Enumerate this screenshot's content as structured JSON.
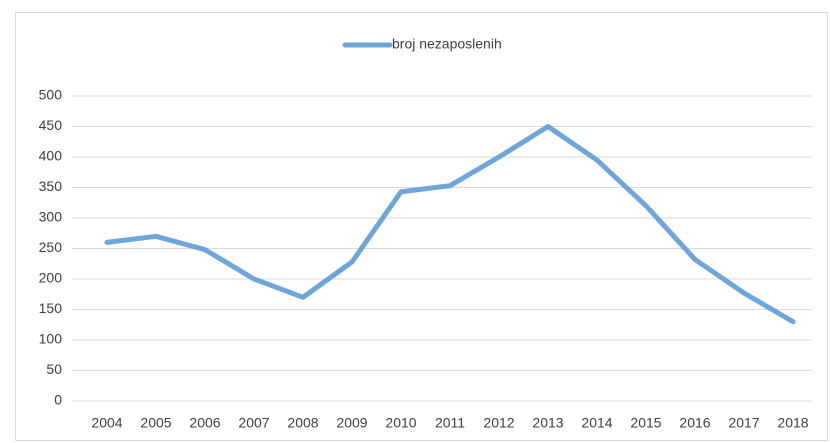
{
  "chart_data": {
    "type": "line",
    "categories": [
      "2004",
      "2005",
      "2006",
      "2007",
      "2008",
      "2009",
      "2010",
      "2011",
      "2012",
      "2013",
      "2014",
      "2015",
      "2016",
      "2017",
      "2018"
    ],
    "series": [
      {
        "name": "broj nezaposlenih",
        "color": "#6fa6d9",
        "values": [
          260,
          270,
          248,
          200,
          170,
          228,
          343,
          353,
          400,
          450,
          395,
          320,
          232,
          177,
          130
        ]
      }
    ],
    "ylim": [
      0,
      500
    ],
    "yticks": [
      0,
      50,
      100,
      150,
      200,
      250,
      300,
      350,
      400,
      450,
      500
    ],
    "grid": true,
    "legend": "top"
  }
}
